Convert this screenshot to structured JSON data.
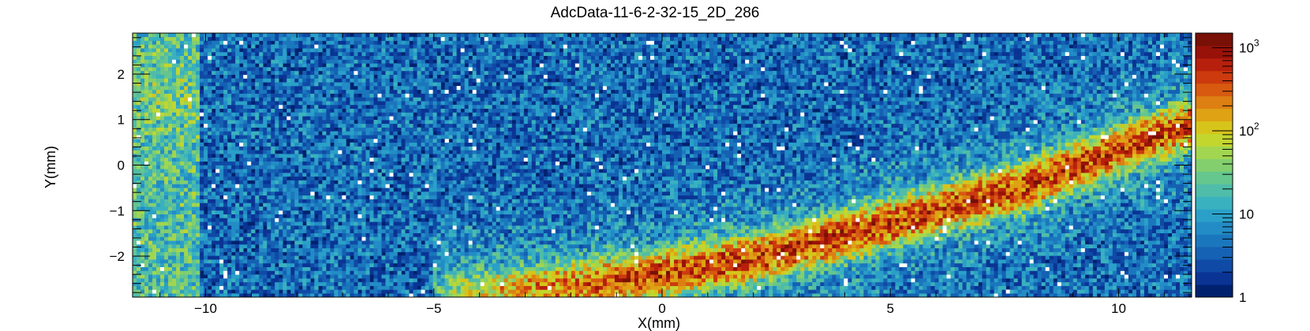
{
  "chart_data": {
    "type": "heatmap",
    "title": "AdcData-11-6-2-32-15_2D_286",
    "xlabel": "X(mm)",
    "ylabel": "Y(mm)",
    "xlim": [
      -11.6,
      11.6
    ],
    "ylim": [
      -2.9,
      2.9
    ],
    "x_ticks": [
      {
        "value": -10,
        "label": "−10"
      },
      {
        "value": -5,
        "label": "−5"
      },
      {
        "value": 0,
        "label": "0"
      },
      {
        "value": 5,
        "label": "5"
      },
      {
        "value": 10,
        "label": "10"
      }
    ],
    "y_ticks": [
      {
        "value": -2,
        "label": "−2"
      },
      {
        "value": -1,
        "label": "−1"
      },
      {
        "value": 0,
        "label": "0"
      },
      {
        "value": 1,
        "label": "1"
      },
      {
        "value": 2,
        "label": "2"
      }
    ],
    "z_scale": "log",
    "zlim": [
      1,
      1500
    ],
    "z_ticks": [
      {
        "value": 1,
        "label": "1"
      },
      {
        "value": 10,
        "label": "10"
      },
      {
        "value": 100,
        "label": "10",
        "exponent": "2"
      },
      {
        "value": 1000,
        "label": "10",
        "exponent": "3"
      }
    ],
    "palette": [
      "#00226e",
      "#0a3494",
      "#0f4aa6",
      "#1561b3",
      "#1b77bd",
      "#238cc6",
      "#2aa0c8",
      "#3ab1bf",
      "#4fbda9",
      "#65c68e",
      "#83cf6e",
      "#a2d650",
      "#c2d62e",
      "#d7c41a",
      "#dea214",
      "#dd7f12",
      "#d75a10",
      "#cc3a0e",
      "#b7200c",
      "#981209",
      "#781006"
    ],
    "features": [
      {
        "name": "band",
        "path_x": [
          -10.5,
          -5,
          -2,
          0,
          2,
          4,
          6,
          8,
          10,
          11.6
        ],
        "path_y": [
          -2.9,
          -2.85,
          -2.65,
          -2.4,
          -2.05,
          -1.55,
          -1.0,
          -0.45,
          0.35,
          0.9
        ],
        "peak_z": 400
      },
      {
        "name": "left-strip",
        "x_range": [
          -11.6,
          -10.1
        ],
        "mean_z": 20
      }
    ],
    "background_z": 4
  }
}
